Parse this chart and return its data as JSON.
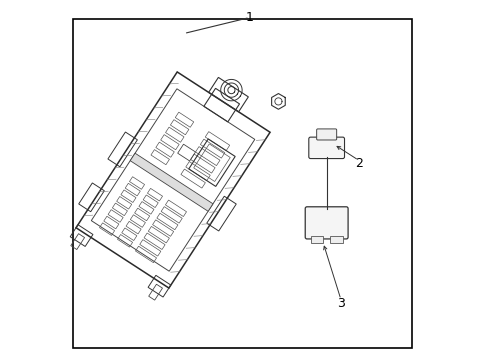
{
  "bg_color": "#ffffff",
  "border_color": "#000000",
  "line_color": "#333333",
  "label_color": "#000000",
  "fig_width": 4.89,
  "fig_height": 3.6,
  "dpi": 100,
  "labels": {
    "1": [
      0.515,
      0.955
    ],
    "2": [
      0.82,
      0.545
    ],
    "3": [
      0.77,
      0.155
    ]
  }
}
